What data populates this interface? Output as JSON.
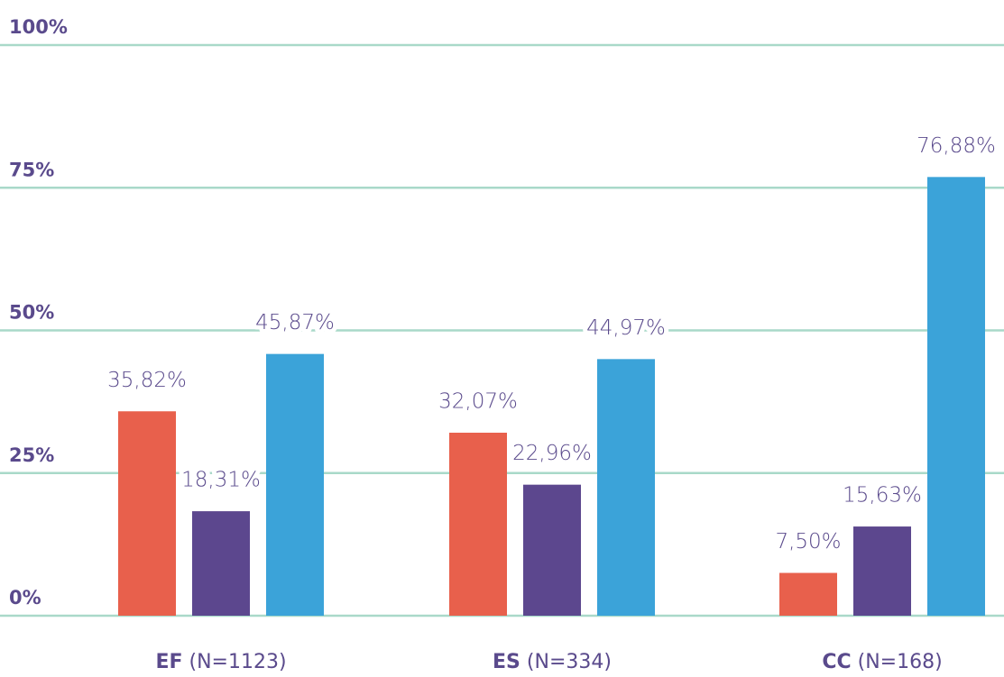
{
  "chart_data": {
    "type": "bar",
    "categories": [
      "EF (N=1123)",
      "ES (N=334)",
      "CC (N=168)"
    ],
    "series": [
      {
        "color": "#e8604c",
        "values": [
          35.82,
          32.07,
          7.5
        ],
        "value_labels": [
          "35,82%",
          "32,07%",
          "7,50%"
        ]
      },
      {
        "color": "#5c478e",
        "values": [
          18.31,
          22.96,
          15.63
        ],
        "value_labels": [
          "18,31%",
          "22,96%",
          "15,63%"
        ]
      },
      {
        "color": "#3ba3d9",
        "values": [
          45.87,
          44.97,
          76.88
        ],
        "value_labels": [
          "45,87%",
          "44,97%",
          "76,88%"
        ]
      }
    ],
    "ylim": [
      0,
      100
    ],
    "yticks": [
      {
        "value": 0,
        "label": "0%"
      },
      {
        "value": 25,
        "label": "25%"
      },
      {
        "value": 50,
        "label": "50%"
      },
      {
        "value": 75,
        "label": "75%"
      },
      {
        "value": 100,
        "label": "100%"
      }
    ],
    "grid": true
  }
}
